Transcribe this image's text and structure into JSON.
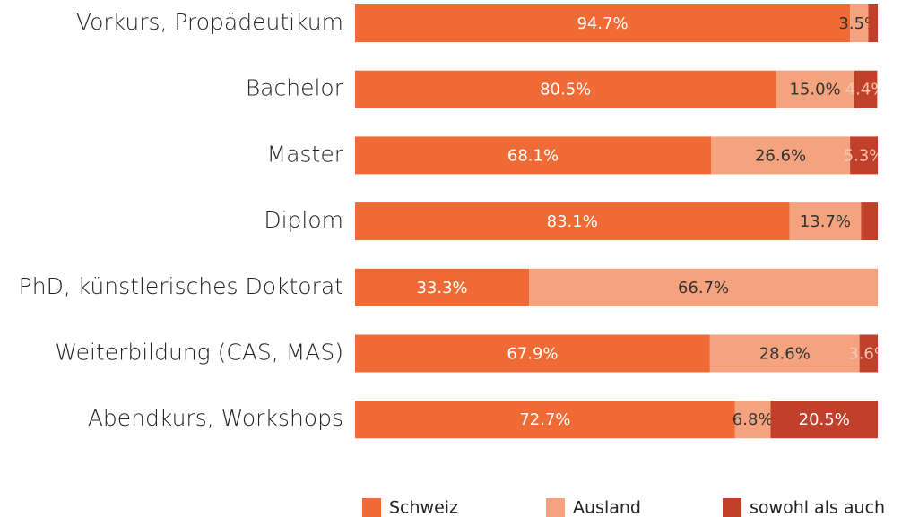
{
  "chart_data": {
    "type": "stacked-barh",
    "categories": [
      "Vorkurs, Propädeutikum",
      "Bachelor",
      "Master",
      "Diplom",
      "PhD, künstlerisches Doktorat",
      "Weiterbildung (CAS, MAS)",
      "Abendkurs, Workshops"
    ],
    "xlim": [
      0,
      100
    ],
    "series": [
      {
        "name": "Schweiz",
        "color": "#f06a35",
        "values": [
          94.7,
          80.5,
          68.1,
          83.1,
          33.3,
          67.9,
          72.7
        ],
        "value_labels": [
          "94.7%",
          "80.5%",
          "68.1%",
          "83.1%",
          "33.3%",
          "67.9%",
          "72.7%"
        ]
      },
      {
        "name": "Ausland",
        "color": "#f5a27f",
        "values": [
          3.5,
          15.0,
          26.6,
          13.7,
          66.7,
          28.6,
          6.8
        ],
        "value_labels": [
          "3.5%",
          "15.0%",
          "26.6%",
          "13.7%",
          "66.7%",
          "28.6%",
          "6.8%"
        ]
      },
      {
        "name": "sowohl als auch",
        "color": "#c0402a",
        "values": [
          1.8,
          4.4,
          5.3,
          3.2,
          0,
          3.6,
          20.5
        ],
        "value_labels": [
          null,
          "4.4%",
          "5.3%",
          null,
          null,
          "3.6%",
          "20.5%"
        ]
      }
    ],
    "legend": "bottom-right"
  }
}
